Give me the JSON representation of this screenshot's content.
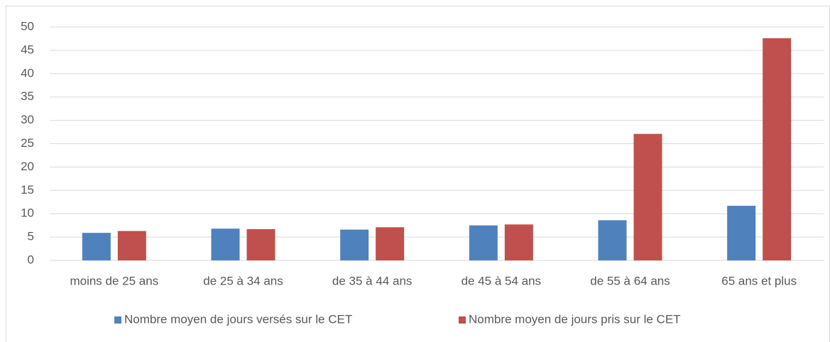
{
  "chart_data": {
    "type": "bar",
    "categories": [
      "moins de 25 ans",
      "de 25 à 34 ans",
      "de 35 à 44 ans",
      "de 45 à 54 ans",
      "de 55 à 64 ans",
      "65 ans et plus"
    ],
    "series": [
      {
        "name": "Nombre moyen de jours versés sur le CET",
        "color": "#4f81bd",
        "values": [
          5.9,
          6.8,
          6.6,
          7.5,
          8.6,
          11.7
        ]
      },
      {
        "name": "Nombre moyen de jours pris sur le CET",
        "color": "#c0504d",
        "values": [
          6.3,
          6.7,
          7.1,
          7.7,
          27.1,
          47.6
        ]
      }
    ],
    "ylim": [
      0,
      50
    ],
    "yticks": [
      0,
      5,
      10,
      15,
      20,
      25,
      30,
      35,
      40,
      45,
      50
    ],
    "grid": true,
    "legend": "bottom"
  }
}
